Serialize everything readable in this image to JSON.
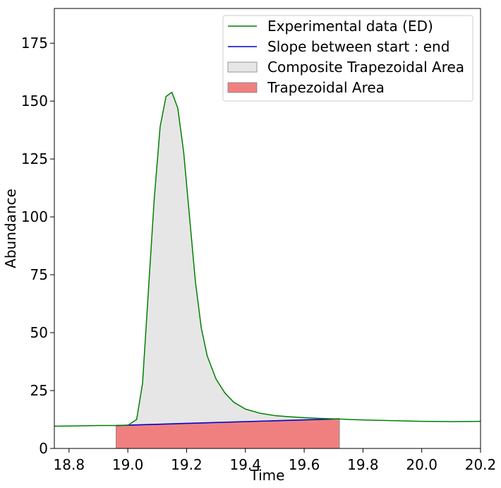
{
  "chart_data": {
    "type": "area",
    "xlabel": "Time",
    "ylabel": "Abundance",
    "xlim": [
      18.75,
      20.2
    ],
    "ylim": [
      0,
      190
    ],
    "x_ticks": [
      "18.8",
      "19.0",
      "19.2",
      "19.4",
      "19.6",
      "19.8",
      "20.0",
      "20.2"
    ],
    "y_ticks": [
      "0",
      "25",
      "50",
      "75",
      "100",
      "125",
      "150",
      "175"
    ],
    "grid": false,
    "legend_position": "top-right",
    "colors": {
      "experimental": "#008000",
      "slope": "#0000cc",
      "composite_fill": "#e6e6e6",
      "composite_edge": "#808080",
      "trapezoid_fill": "#f08080"
    },
    "legend": [
      {
        "label": "Experimental data (ED)",
        "kind": "line",
        "color": "#008000"
      },
      {
        "label": "Slope between start : end",
        "kind": "line",
        "color": "#0000cc"
      },
      {
        "label": "Composite Trapezoidal Area",
        "kind": "patch",
        "color": "#e6e6e6"
      },
      {
        "label": "Trapezoidal Area",
        "kind": "patch",
        "color": "#f08080"
      }
    ],
    "series": [
      {
        "name": "Experimental data (ED)",
        "x": [
          18.75,
          18.8,
          18.9,
          18.96,
          19.0,
          19.03,
          19.05,
          19.07,
          19.09,
          19.11,
          19.13,
          19.15,
          19.17,
          19.19,
          19.21,
          19.23,
          19.25,
          19.27,
          19.3,
          19.33,
          19.36,
          19.4,
          19.45,
          19.5,
          19.55,
          19.6,
          19.65,
          19.72,
          19.8,
          19.9,
          20.0,
          20.1,
          20.2
        ],
        "y": [
          9.6,
          9.7,
          9.9,
          9.9,
          10.0,
          12.5,
          28.0,
          68.0,
          108.0,
          139.0,
          152.0,
          153.8,
          147.0,
          128.0,
          100.0,
          72.0,
          52.0,
          40.0,
          30.0,
          24.0,
          20.0,
          17.0,
          15.2,
          14.2,
          13.7,
          13.3,
          13.0,
          12.7,
          12.3,
          12.0,
          11.7,
          11.6,
          11.7
        ]
      },
      {
        "name": "Slope between start : end",
        "x": [
          18.96,
          19.72
        ],
        "y": [
          9.9,
          12.8
        ]
      }
    ],
    "trapezoidal_area": {
      "x_start": 18.96,
      "x_end": 19.72,
      "y_start": 9.9,
      "y_end": 12.8
    }
  }
}
